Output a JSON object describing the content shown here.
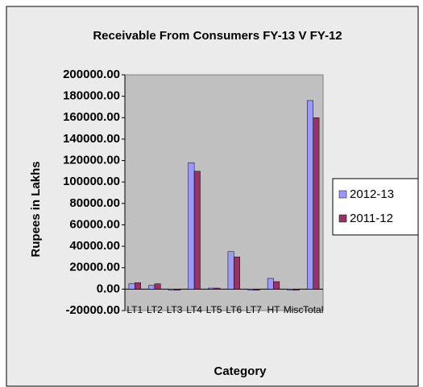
{
  "chart_data": {
    "type": "bar",
    "title": "Receivable From Consumers FY-13 V FY-12",
    "y_label": "Rupees in Lakhs",
    "x_label": "Category",
    "categories": [
      "LT1",
      "LT2",
      "LT3",
      "LT4",
      "LT5",
      "LT6",
      "LT7",
      "HT",
      "Misc",
      "Total"
    ],
    "series": [
      {
        "name": "2012-13",
        "color": "#9999ff",
        "values": [
          5000,
          3500,
          -1000,
          118000,
          1000,
          35000,
          -1000,
          10000,
          -1000,
          176000
        ]
      },
      {
        "name": "2011-12",
        "color": "#993366",
        "values": [
          6000,
          5000,
          -1000,
          110000,
          1000,
          30000,
          -1000,
          7000,
          -1000,
          160000
        ]
      }
    ],
    "ylim": [
      -20000,
      200000
    ],
    "yticks": [
      {
        "value": -20000,
        "label": "-20000.00"
      },
      {
        "value": 0,
        "label": "0.00"
      },
      {
        "value": 20000,
        "label": "20000.00"
      },
      {
        "value": 40000,
        "label": "40000.00"
      },
      {
        "value": 60000,
        "label": "60000.00"
      },
      {
        "value": 80000,
        "label": "80000.00"
      },
      {
        "value": 100000,
        "label": "100000.00"
      },
      {
        "value": 120000,
        "label": "120000.00"
      },
      {
        "value": 140000,
        "label": "140000.00"
      },
      {
        "value": 160000,
        "label": "160000.00"
      },
      {
        "value": 180000,
        "label": "180000.00"
      },
      {
        "value": 200000,
        "label": "200000.00"
      }
    ],
    "grid": false,
    "legend": "right"
  }
}
